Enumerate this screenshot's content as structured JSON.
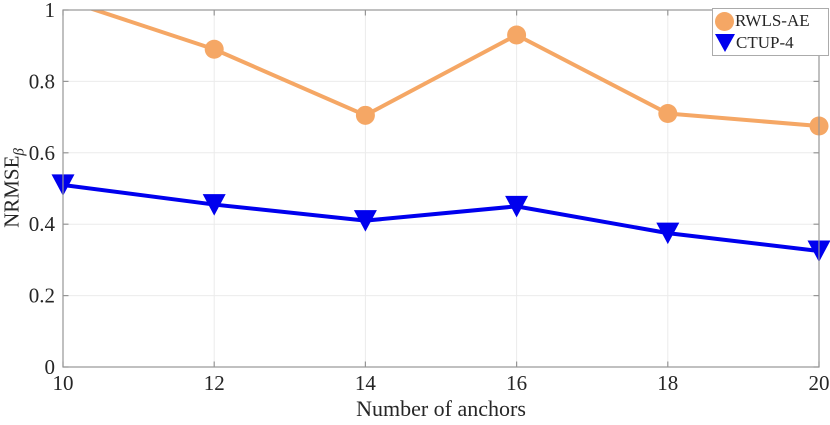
{
  "figure": {
    "xlabel": "Number of anchors",
    "ylabel": "NRMSE_β",
    "ylabel_main": "NRMSE",
    "ylabel_sub": "β"
  },
  "legend": {
    "position": "top-right",
    "entries": [
      {
        "label": "RWLS-AE",
        "marker": "circle",
        "color": "#F5A765"
      },
      {
        "label": "CTUP-4",
        "marker": "triangle-down",
        "color": "#0000EE"
      }
    ]
  },
  "chart_data": {
    "type": "line",
    "x": [
      10,
      12,
      14,
      16,
      18,
      20
    ],
    "series": [
      {
        "name": "RWLS-AE",
        "color": "#F5A765",
        "marker": "circle",
        "values": [
          1.03,
          0.89,
          0.705,
          0.93,
          0.71,
          0.675
        ]
      },
      {
        "name": "CTUP-4",
        "color": "#0000EE",
        "marker": "triangle-down",
        "values": [
          0.51,
          0.455,
          0.41,
          0.45,
          0.375,
          0.325
        ]
      }
    ],
    "title": "",
    "xlabel": "Number of anchors",
    "ylabel": "NRMSE_β",
    "xlim": [
      10,
      20
    ],
    "ylim": [
      0,
      1
    ],
    "xticks": [
      10,
      12,
      14,
      16,
      18,
      20
    ],
    "yticks": [
      0,
      0.2,
      0.4,
      0.6,
      0.8,
      1
    ],
    "grid": true,
    "legend_position": "top-right"
  },
  "style": {
    "background": "#FFFFFF",
    "grid_color": "#EBEBEB",
    "axis_color": "#969696",
    "text_color": "#262626",
    "legend_border_color": "#ABABAB"
  }
}
